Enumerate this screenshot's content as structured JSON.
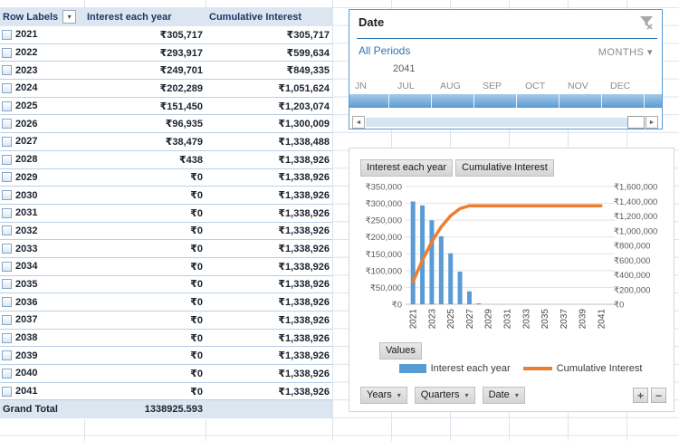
{
  "pivot_table": {
    "headers": {
      "row_labels": "Row Labels",
      "interest": "Interest each year",
      "cumulative": "Cumulative Interest"
    },
    "rows": [
      {
        "year": "2021",
        "interest": "₹305,717",
        "cumulative": "₹305,717"
      },
      {
        "year": "2022",
        "interest": "₹293,917",
        "cumulative": "₹599,634"
      },
      {
        "year": "2023",
        "interest": "₹249,701",
        "cumulative": "₹849,335"
      },
      {
        "year": "2024",
        "interest": "₹202,289",
        "cumulative": "₹1,051,624"
      },
      {
        "year": "2025",
        "interest": "₹151,450",
        "cumulative": "₹1,203,074"
      },
      {
        "year": "2026",
        "interest": "₹96,935",
        "cumulative": "₹1,300,009"
      },
      {
        "year": "2027",
        "interest": "₹38,479",
        "cumulative": "₹1,338,488"
      },
      {
        "year": "2028",
        "interest": "₹438",
        "cumulative": "₹1,338,926"
      },
      {
        "year": "2029",
        "interest": "₹0",
        "cumulative": "₹1,338,926"
      },
      {
        "year": "2030",
        "interest": "₹0",
        "cumulative": "₹1,338,926"
      },
      {
        "year": "2031",
        "interest": "₹0",
        "cumulative": "₹1,338,926"
      },
      {
        "year": "2032",
        "interest": "₹0",
        "cumulative": "₹1,338,926"
      },
      {
        "year": "2033",
        "interest": "₹0",
        "cumulative": "₹1,338,926"
      },
      {
        "year": "2034",
        "interest": "₹0",
        "cumulative": "₹1,338,926"
      },
      {
        "year": "2035",
        "interest": "₹0",
        "cumulative": "₹1,338,926"
      },
      {
        "year": "2036",
        "interest": "₹0",
        "cumulative": "₹1,338,926"
      },
      {
        "year": "2037",
        "interest": "₹0",
        "cumulative": "₹1,338,926"
      },
      {
        "year": "2038",
        "interest": "₹0",
        "cumulative": "₹1,338,926"
      },
      {
        "year": "2039",
        "interest": "₹0",
        "cumulative": "₹1,338,926"
      },
      {
        "year": "2040",
        "interest": "₹0",
        "cumulative": "₹1,338,926"
      },
      {
        "year": "2041",
        "interest": "₹0",
        "cumulative": "₹1,338,926"
      }
    ],
    "grand_total": {
      "label": "Grand Total",
      "value": "1338925.593"
    }
  },
  "slicer": {
    "title": "Date",
    "period_label": "All Periods",
    "granularity": "MONTHS",
    "year_label": "2041",
    "months": [
      "JN",
      "JUL",
      "AUG",
      "SEP",
      "OCT",
      "NOV",
      "DEC"
    ]
  },
  "chart": {
    "field_buttons": [
      "Interest each year",
      "Cumulative Interest"
    ],
    "values_button": "Values",
    "axis_buttons": [
      "Years",
      "Quarters",
      "Date"
    ]
  },
  "chart_data": {
    "type": "bar",
    "categories": [
      2021,
      2022,
      2023,
      2024,
      2025,
      2026,
      2027,
      2028,
      2029,
      2030,
      2031,
      2032,
      2033,
      2034,
      2035,
      2036,
      2037,
      2038,
      2039,
      2040,
      2041
    ],
    "series": [
      {
        "name": "Interest each year",
        "type": "bar",
        "axis": "left",
        "color": "#5B9BD5",
        "values": [
          305717,
          293917,
          249701,
          202289,
          151450,
          96935,
          38479,
          438,
          0,
          0,
          0,
          0,
          0,
          0,
          0,
          0,
          0,
          0,
          0,
          0,
          0
        ]
      },
      {
        "name": "Cumulative Interest",
        "type": "line",
        "axis": "right",
        "color": "#ED7D31",
        "values": [
          305717,
          599634,
          849335,
          1051624,
          1203074,
          1300009,
          1338488,
          1338926,
          1338926,
          1338926,
          1338926,
          1338926,
          1338926,
          1338926,
          1338926,
          1338926,
          1338926,
          1338926,
          1338926,
          1338926,
          1338926
        ]
      }
    ],
    "left_axis": {
      "min": 0,
      "max": 350000,
      "step": 50000,
      "tick_prefix": "₹"
    },
    "right_axis": {
      "min": 0,
      "max": 1600000,
      "step": 200000,
      "tick_prefix": "₹"
    },
    "x_tick_years": [
      2021,
      2023,
      2025,
      2027,
      2029,
      2031,
      2033,
      2035,
      2037,
      2039,
      2041
    ],
    "grid": true,
    "legend_position": "bottom"
  },
  "icons": {
    "expand": "+",
    "dropdown_arrow": "▾",
    "scroll_left": "◄",
    "scroll_right": "►",
    "zoom_in": "+",
    "zoom_out": "−"
  },
  "colors": {
    "bar_series": "#5B9BD5",
    "line_series": "#ED7D31",
    "pivot_header_bg": "#dce6f1",
    "slicer_accent": "#2e75b6"
  }
}
